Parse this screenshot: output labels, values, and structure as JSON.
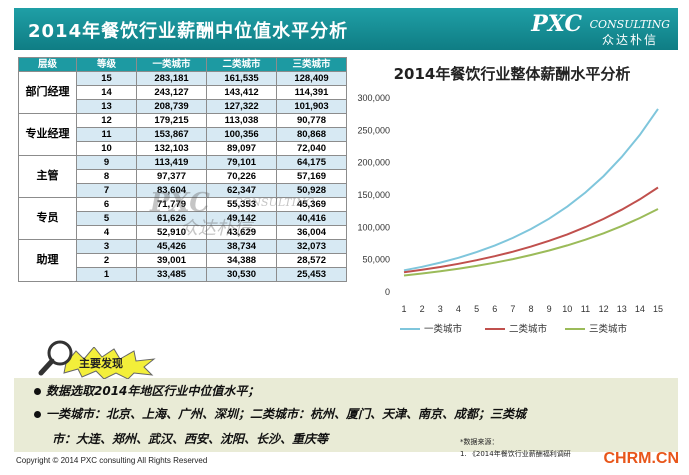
{
  "header": {
    "title": "2014年餐饮行业薪酬中位值水平分析",
    "logo_main": "PXC",
    "logo_sub": "CONSULTING",
    "logo_cn": "众达朴信"
  },
  "table": {
    "headers": [
      "层级",
      "等级",
      "一类城市",
      "二类城市",
      "三类城市"
    ],
    "groups": [
      {
        "label": "部门经理",
        "rows": [
          [
            "15",
            "283,181",
            "161,535",
            "128,409"
          ],
          [
            "14",
            "243,127",
            "143,412",
            "114,391"
          ],
          [
            "13",
            "208,739",
            "127,322",
            "101,903"
          ]
        ]
      },
      {
        "label": "专业经理",
        "rows": [
          [
            "12",
            "179,215",
            "113,038",
            "90,778"
          ],
          [
            "11",
            "153,867",
            "100,356",
            "80,868"
          ],
          [
            "10",
            "132,103",
            "89,097",
            "72,040"
          ]
        ]
      },
      {
        "label": "主管",
        "rows": [
          [
            "9",
            "113,419",
            "79,101",
            "64,175"
          ],
          [
            "8",
            "97,377",
            "70,226",
            "57,169"
          ],
          [
            "7",
            "83,604",
            "62,347",
            "50,928"
          ]
        ]
      },
      {
        "label": "专员",
        "rows": [
          [
            "6",
            "71,779",
            "55,353",
            "45,369"
          ],
          [
            "5",
            "61,626",
            "49,142",
            "40,416"
          ],
          [
            "4",
            "52,910",
            "43,629",
            "36,004"
          ]
        ]
      },
      {
        "label": "助理",
        "rows": [
          [
            "3",
            "45,426",
            "38,734",
            "32,073"
          ],
          [
            "2",
            "39,001",
            "34,388",
            "28,572"
          ],
          [
            "1",
            "33,485",
            "30,530",
            "25,453"
          ]
        ]
      }
    ]
  },
  "watermark": {
    "main": "PXC",
    "sub": "CONSULTING",
    "cn": "众达朴信"
  },
  "chart_data": {
    "type": "line",
    "title": "2014年餐饮行业整体薪酬水平分析",
    "x": [
      1,
      2,
      3,
      4,
      5,
      6,
      7,
      8,
      9,
      10,
      11,
      12,
      13,
      14,
      15
    ],
    "yticks": [
      "0",
      "50,000",
      "100,000",
      "150,000",
      "200,000",
      "250,000",
      "300,000"
    ],
    "ylim": [
      0,
      300000
    ],
    "series": [
      {
        "name": "一类城市",
        "color": "#7fc6dc",
        "values": [
          33485,
          39001,
          45426,
          52910,
          61626,
          71779,
          83604,
          97377,
          113419,
          132103,
          153867,
          179215,
          208739,
          243127,
          283181
        ]
      },
      {
        "name": "二类城市",
        "color": "#c0504d",
        "values": [
          30530,
          34388,
          38734,
          43629,
          49142,
          55353,
          62347,
          70226,
          79101,
          89097,
          100356,
          113038,
          127322,
          143412,
          161535
        ]
      },
      {
        "name": "三类城市",
        "color": "#9bbb59",
        "values": [
          25453,
          28572,
          32073,
          36004,
          40416,
          45369,
          50928,
          57169,
          64175,
          72040,
          80868,
          90778,
          101903,
          114391,
          128409
        ]
      }
    ],
    "legend": "bottom",
    "grid": false
  },
  "findings": {
    "badge": "主要发现",
    "line1": "数据选取2014年地区行业中位值水平；",
    "line2": "一类城市：北京、上海、广州、深圳；二类城市：杭州、厦门、天津、南京、成都；三类城",
    "line3": "市：大连、郑州、武汉、西安、沈阳、长沙、重庆等",
    "source_label": "*数据来源：",
    "source_item": "1.   《2014年餐饮行业薪酬福利调研"
  },
  "footer": {
    "copyright": "Copyright © 2014 PXC consulting All Rights Reserved",
    "site": "CHRM.CN"
  }
}
